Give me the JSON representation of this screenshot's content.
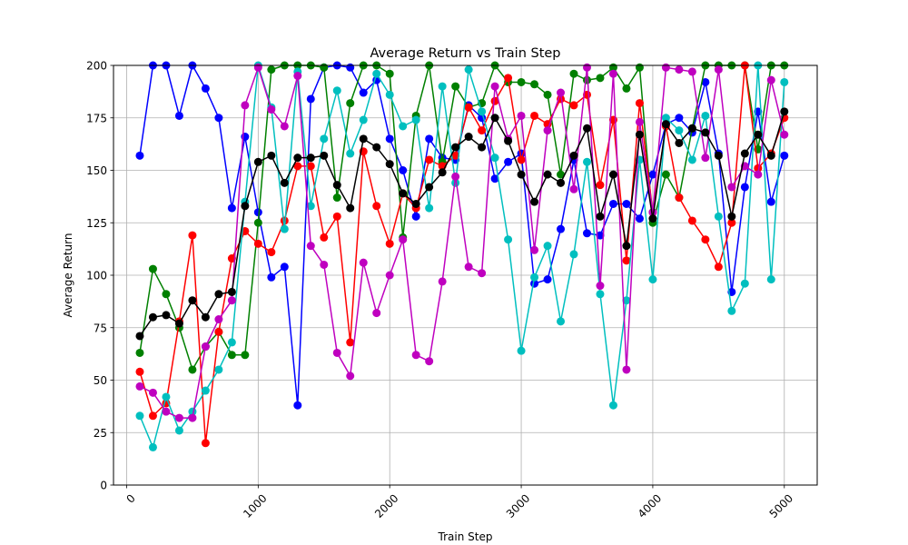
{
  "chart_data": {
    "type": "line",
    "title": "Average Return vs Train Step",
    "xlabel": "Train Step",
    "ylabel": "Average Return",
    "xlim": [
      -100,
      5250
    ],
    "ylim": [
      0,
      200
    ],
    "xticks": [
      0,
      1000,
      2000,
      3000,
      4000,
      5000
    ],
    "yticks": [
      0,
      25,
      50,
      75,
      100,
      125,
      150,
      175,
      200
    ],
    "xtick_rotation": 45,
    "grid": true,
    "legend": false,
    "x": [
      100,
      200,
      300,
      400,
      500,
      600,
      700,
      800,
      900,
      1000,
      1100,
      1200,
      1300,
      1400,
      1500,
      1600,
      1700,
      1800,
      1900,
      2000,
      2100,
      2200,
      2300,
      2400,
      2500,
      2600,
      2700,
      2800,
      2900,
      3000,
      3100,
      3200,
      3300,
      3400,
      3500,
      3600,
      3700,
      3800,
      3900,
      4000,
      4100,
      4200,
      4300,
      4400,
      4500,
      4600,
      4700,
      4800,
      4900,
      5000
    ],
    "series": [
      {
        "color": "#0000ff",
        "values": [
          157,
          200,
          200,
          176,
          200,
          189,
          175,
          132,
          166,
          130,
          99,
          104,
          38,
          184,
          199,
          200,
          199,
          187,
          193,
          165,
          150,
          128,
          165,
          156,
          155,
          181,
          175,
          146,
          154,
          158,
          96,
          98,
          122,
          155,
          120,
          119,
          134,
          134,
          127,
          148,
          172,
          175,
          168,
          192,
          158,
          92,
          142,
          178,
          135,
          157
        ]
      },
      {
        "color": "#008000",
        "values": [
          63,
          103,
          91,
          75,
          55,
          66,
          73,
          62,
          62,
          125,
          198,
          200,
          200,
          200,
          199,
          137,
          182,
          200,
          200,
          196,
          118,
          176,
          200,
          154,
          190,
          180,
          182,
          200,
          192,
          192,
          191,
          186,
          148,
          196,
          193,
          194,
          199,
          189,
          199,
          125,
          148,
          137,
          170,
          200,
          200,
          200,
          200,
          160,
          200,
          200
        ]
      },
      {
        "color": "#ff0000",
        "values": [
          54,
          33,
          39,
          78,
          119,
          20,
          73,
          108,
          121,
          115,
          111,
          126,
          152,
          152,
          118,
          128,
          68,
          159,
          133,
          115,
          139,
          132,
          155,
          152,
          157,
          180,
          169,
          183,
          194,
          155,
          176,
          172,
          184,
          181,
          186,
          143,
          174,
          107,
          182,
          130,
          171,
          137,
          126,
          117,
          104,
          125,
          200,
          151,
          158,
          175
        ]
      },
      {
        "color": "#00bfbf",
        "values": [
          33,
          18,
          42,
          26,
          35,
          45,
          55,
          68,
          135,
          200,
          180,
          122,
          197,
          133,
          165,
          188,
          158,
          174,
          196,
          186,
          171,
          174,
          132,
          190,
          144,
          198,
          178,
          156,
          117,
          64,
          99,
          114,
          78,
          110,
          154,
          91,
          38,
          88,
          155,
          98,
          175,
          169,
          155,
          176,
          128,
          83,
          96,
          200,
          98,
          192
        ]
      },
      {
        "color": "#bf00bf",
        "values": [
          47,
          44,
          35,
          32,
          32,
          66,
          79,
          88,
          181,
          199,
          179,
          171,
          195,
          114,
          105,
          63,
          52,
          106,
          82,
          100,
          117,
          62,
          59,
          97,
          147,
          104,
          101,
          190,
          165,
          176,
          112,
          169,
          187,
          141,
          199,
          95,
          196,
          55,
          173,
          130,
          199,
          198,
          197,
          156,
          198,
          142,
          152,
          148,
          193,
          167
        ]
      },
      {
        "color": "#000000",
        "values": [
          71,
          80,
          81,
          77,
          88,
          80,
          91,
          92,
          133,
          154,
          157,
          144,
          156,
          156,
          157,
          143,
          132,
          165,
          161,
          153,
          139,
          134,
          142,
          149,
          161,
          166,
          161,
          175,
          164,
          148,
          135,
          148,
          144,
          157,
          170,
          128,
          148,
          114,
          167,
          127,
          172,
          163,
          170,
          168,
          157,
          128,
          158,
          167,
          157,
          178
        ]
      }
    ]
  }
}
